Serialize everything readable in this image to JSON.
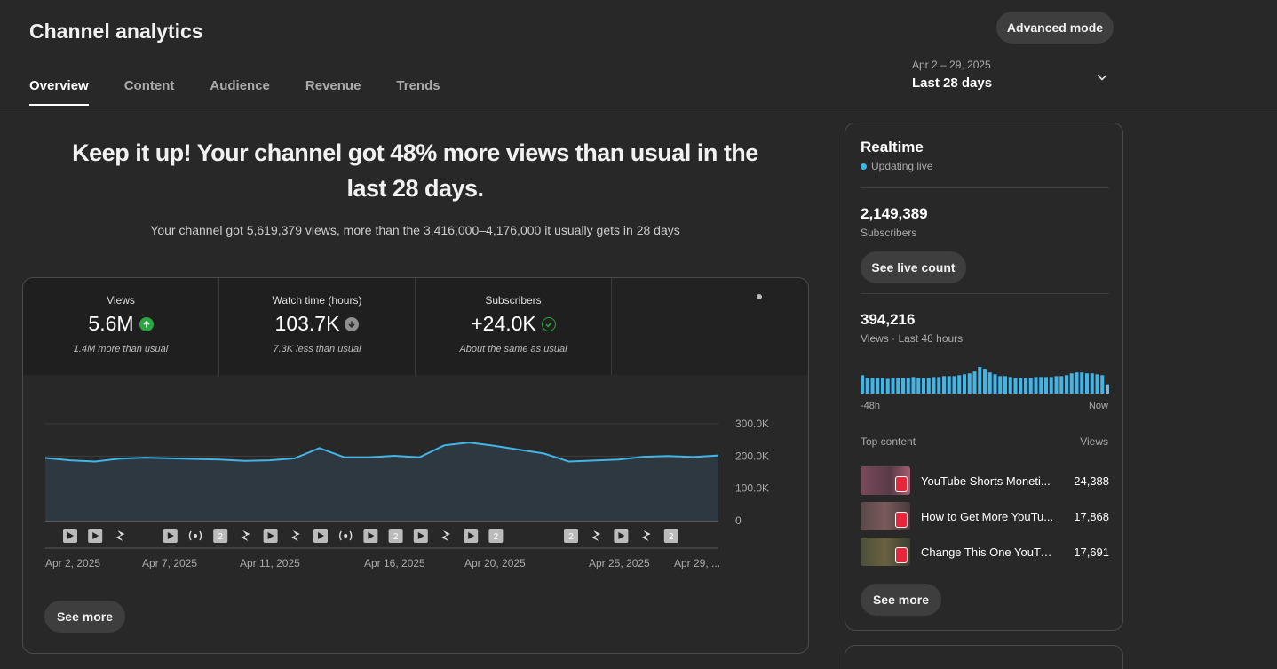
{
  "header": {
    "title": "Channel analytics",
    "advanced_mode_label": "Advanced mode"
  },
  "tabs": [
    {
      "label": "Overview",
      "active": true
    },
    {
      "label": "Content",
      "active": false
    },
    {
      "label": "Audience",
      "active": false
    },
    {
      "label": "Revenue",
      "active": false
    },
    {
      "label": "Trends",
      "active": false
    }
  ],
  "date_picker": {
    "range": "Apr 2 – 29, 2025",
    "label": "Last 28 days"
  },
  "summary": {
    "headline": "Keep it up! Your channel got 48% more views than usual in the last 28 days.",
    "subline": "Your channel got 5,619,379 views, more than the 3,416,000–4,176,000 it usually gets in 28 days"
  },
  "metrics": [
    {
      "label": "Views",
      "value": "5.6M",
      "note": "1.4M more than usual",
      "status": "up"
    },
    {
      "label": "Watch time (hours)",
      "value": "103.7K",
      "note": "7.3K less than usual",
      "status": "down"
    },
    {
      "label": "Subscribers",
      "value": "+24.0K",
      "note": "About the same as usual",
      "status": "same"
    }
  ],
  "chart_data": {
    "type": "area",
    "title": "Views",
    "y_ticks": [
      "300.0K",
      "200.0K",
      "100.0K",
      "0"
    ],
    "ylim": [
      0,
      300000
    ],
    "x_tick_labels": [
      "Apr 2, 2025",
      "Apr 7, 2025",
      "Apr 11, 2025",
      "Apr 16, 2025",
      "Apr 20, 2025",
      "Apr 25, 2025",
      "Apr 29, ..."
    ],
    "x": [
      "Apr 2",
      "Apr 3",
      "Apr 4",
      "Apr 5",
      "Apr 6",
      "Apr 7",
      "Apr 8",
      "Apr 9",
      "Apr 10",
      "Apr 11",
      "Apr 12",
      "Apr 13",
      "Apr 14",
      "Apr 15",
      "Apr 16",
      "Apr 17",
      "Apr 18",
      "Apr 19",
      "Apr 20",
      "Apr 21",
      "Apr 22",
      "Apr 23",
      "Apr 24",
      "Apr 25",
      "Apr 26",
      "Apr 27",
      "Apr 28",
      "Apr 29"
    ],
    "values": [
      194000,
      187000,
      183000,
      192000,
      195000,
      193000,
      191000,
      189000,
      185000,
      187000,
      193000,
      225000,
      196000,
      196000,
      201000,
      196000,
      233000,
      242000,
      232000,
      220000,
      208000,
      183000,
      186000,
      189000,
      198000,
      200000,
      197000,
      202000
    ],
    "markers": [
      "video",
      "video",
      "short",
      "",
      "video",
      "live",
      "multi",
      "short",
      "video",
      "short",
      "video",
      "live",
      "video",
      "multi",
      "video",
      "short",
      "video",
      "multi",
      "",
      "",
      "multi",
      "short",
      "video",
      "short",
      "multi"
    ]
  },
  "see_more_label": "See more",
  "realtime": {
    "title": "Realtime",
    "live_label": "Updating live",
    "subscribers_value": "2,149,389",
    "subscribers_label": "Subscribers",
    "see_live_label": "See live count",
    "views_value": "394,216",
    "views_label": "Views · Last 48 hours",
    "axis_start": "-48h",
    "axis_end": "Now",
    "hourly_views": [
      20,
      17,
      17,
      17,
      17,
      16,
      17,
      17,
      17,
      17,
      18,
      17,
      17,
      17,
      18,
      18,
      19,
      19,
      19,
      20,
      21,
      22,
      24,
      29,
      27,
      23,
      21,
      19,
      19,
      18,
      17,
      17,
      17,
      17,
      18,
      18,
      18,
      18,
      19,
      19,
      20,
      22,
      23,
      23,
      22,
      22,
      21,
      20,
      10
    ],
    "top_content_label": "Top content",
    "views_col_label": "Views",
    "top_content": [
      {
        "title": "YouTube Shorts Moneti...",
        "views": "24,388"
      },
      {
        "title": "How to Get More YouTu...",
        "views": "17,868"
      },
      {
        "title": "Change This One YouTu...",
        "views": "17,691"
      }
    ],
    "see_more_label": "See more"
  },
  "colors": {
    "accent": "#41b5e8",
    "up": "#2ba640",
    "background": "#282828"
  }
}
